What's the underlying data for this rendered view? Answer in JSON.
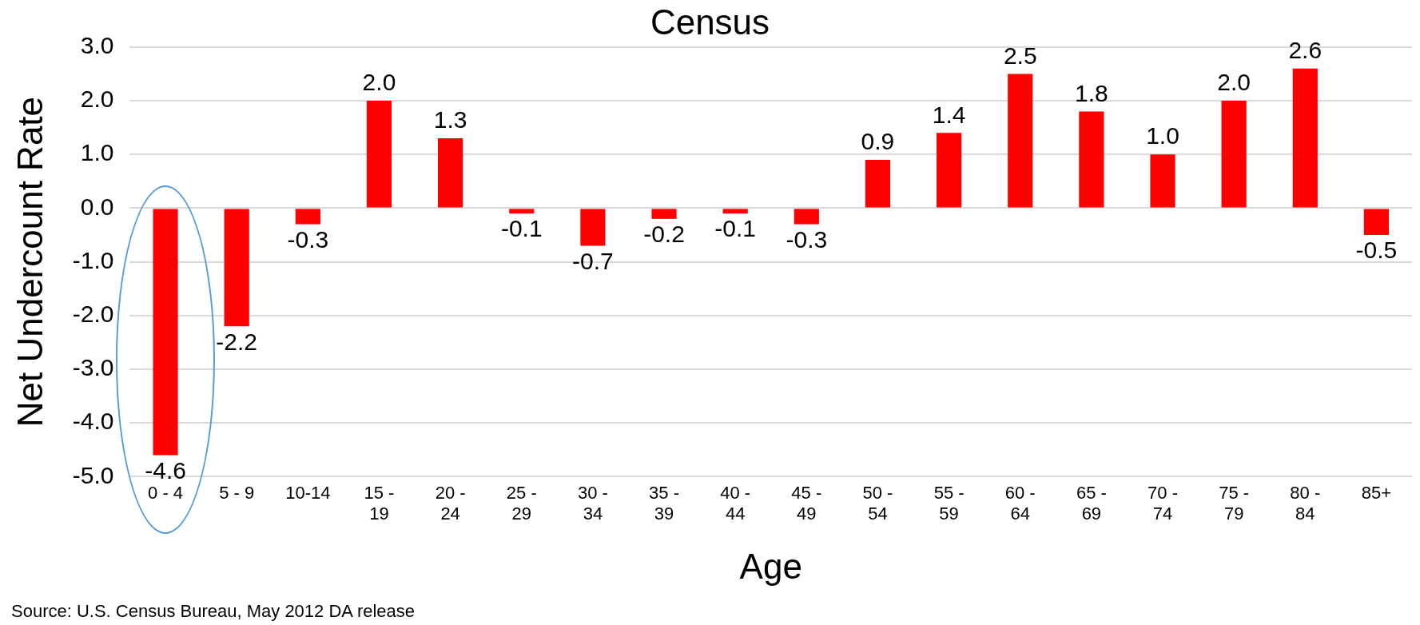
{
  "chart_data": {
    "type": "bar",
    "title": "Census",
    "xlabel": "Age",
    "ylabel": "Net Undercount Rate",
    "categories": [
      "0 - 4",
      "5 - 9",
      "10-14",
      "15 - 19",
      "20 - 24",
      "25 - 29",
      "30 - 34",
      "35 - 39",
      "40 - 44",
      "45 - 49",
      "50 - 54",
      "55 - 59",
      "60 - 64",
      "65 - 69",
      "70 - 74",
      "75 - 79",
      "80 - 84",
      "85+"
    ],
    "values": [
      -4.6,
      -2.2,
      -0.3,
      2.0,
      1.3,
      -0.1,
      -0.7,
      -0.2,
      -0.1,
      -0.3,
      0.9,
      1.4,
      2.5,
      1.8,
      1.0,
      2.0,
      2.6,
      -0.5
    ],
    "value_labels": [
      "-4.6",
      "-2.2",
      "-0.3",
      "2.0",
      "1.3",
      "-0.1",
      "-0.7",
      "-0.2",
      "-0.1",
      "-0.3",
      "0.9",
      "1.4",
      "2.5",
      "1.8",
      "1.0",
      "2.0",
      "2.6",
      "-0.5"
    ],
    "color": "#ff0000",
    "grid": "y",
    "legend": false,
    "ylim": [
      -5,
      3
    ],
    "yticks": [
      {
        "value": -5,
        "label": "-5.0"
      },
      {
        "value": -4,
        "label": "-4.0"
      },
      {
        "value": -3,
        "label": "-3.0"
      },
      {
        "value": -2,
        "label": "-2.0"
      },
      {
        "value": -1,
        "label": "-1.0"
      },
      {
        "value": 0,
        "label": "0.0"
      },
      {
        "value": 1,
        "label": "1.0"
      },
      {
        "value": 2,
        "label": "2.0"
      },
      {
        "value": 3,
        "label": "3.0"
      }
    ],
    "annotations": [
      "Source: U.S. Census Bureau, May 2012 DA release"
    ]
  }
}
